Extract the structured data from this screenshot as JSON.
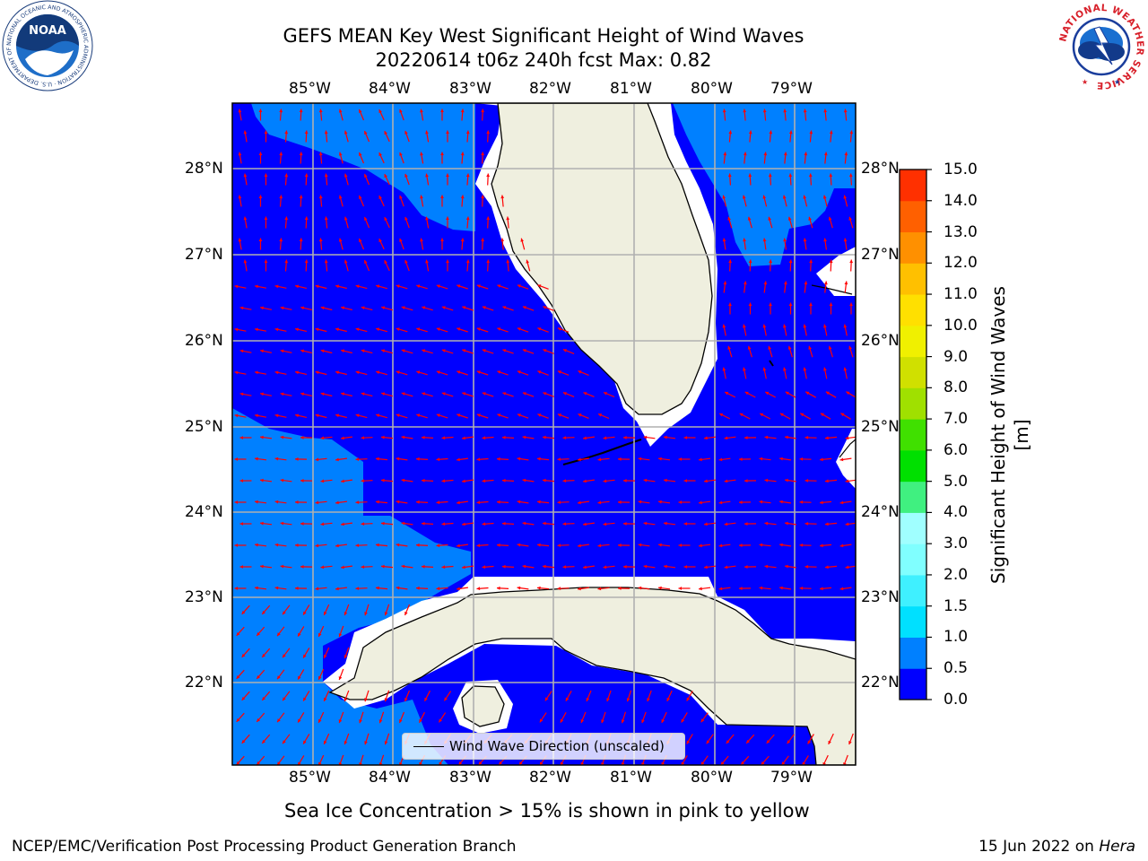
{
  "header": {
    "title_line1": "GEFS MEAN Key West Significant Height of Wind Waves",
    "title_line2": "20220614 t06z 240h fcst   Max: 0.82"
  },
  "logos": {
    "left": "NOAA",
    "left_ring_text": "NATIONAL OCEANIC AND ATMOSPHERIC ADMINISTRATION · U.S. DEPARTMENT OF COMMERCE",
    "right_ring_text": "NATIONAL WEATHER SERVICE"
  },
  "map": {
    "lon_labels": [
      "85°W",
      "84°W",
      "83°W",
      "82°W",
      "81°W",
      "80°W",
      "79°W"
    ],
    "lat_labels": [
      "28°N",
      "27°N",
      "26°N",
      "25°N",
      "24°N",
      "23°N",
      "22°N"
    ],
    "legend_text": "Wind Wave Direction (unscaled)",
    "colors": {
      "ocean_low": "#0000ff",
      "ocean_mid": "#0080ff",
      "land": "#efefdf",
      "arrow": "#ff0000",
      "grid": "#b0b0b0"
    }
  },
  "colorbar": {
    "label": "Significant Height of Wind Waves [m]",
    "ticks": [
      "0.0",
      "0.5",
      "1.0",
      "1.5",
      "2.0",
      "3.0",
      "4.0",
      "5.0",
      "6.0",
      "7.0",
      "8.0",
      "9.0",
      "10.0",
      "11.0",
      "12.0",
      "13.0",
      "14.0",
      "15.0"
    ],
    "colors": [
      "#0000ff",
      "#0080ff",
      "#00e0ff",
      "#3ff0ff",
      "#80ffff",
      "#a0ffff",
      "#40f080",
      "#00e000",
      "#40e000",
      "#a0e000",
      "#d0e000",
      "#f0f000",
      "#ffe000",
      "#ffc000",
      "#ff9000",
      "#ff6000",
      "#ff3000",
      "#ff0000"
    ]
  },
  "subcaption": "Sea Ice Concentration > 15% is shown in pink to yellow",
  "footer": {
    "left": "NCEP/EMC/Verification Post Processing Product Generation Branch",
    "right_date": "15 Jun 2022 on",
    "right_host": "Hera"
  }
}
